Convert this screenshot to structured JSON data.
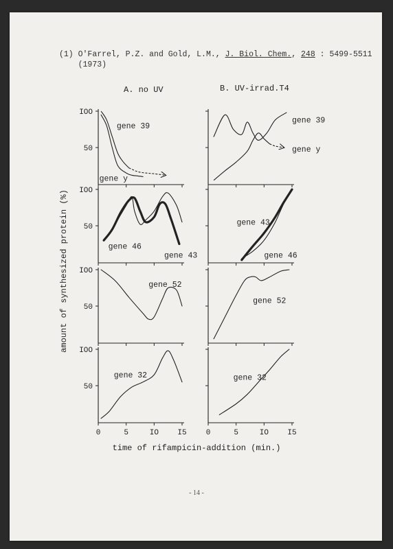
{
  "reference": {
    "number": "(1)",
    "authors": "O'Farrel, P.Z. and Gold, L.M.,",
    "journal": "J. Biol. Chem.",
    "volume": "248",
    "pages": ": 5499-5511",
    "year": "(1973)"
  },
  "page_number": "- 14 -",
  "chart_data": {
    "type": "line",
    "ylabel": "amount of synthesized protein  (%)",
    "xlabel": "time of rifampicin-addition (min.)",
    "x_ticks": [
      "0",
      "5",
      "IO",
      "I5"
    ],
    "y_ticks": [
      "IOO",
      "50"
    ],
    "xlim": [
      0,
      15
    ],
    "ylim": [
      0,
      100
    ],
    "columns": [
      {
        "title": "A.  no UV"
      },
      {
        "title": "B.  UV-irrad.T4"
      }
    ],
    "panels": [
      {
        "col": 0,
        "row": 0,
        "series": [
          {
            "name": "gene 39",
            "x": [
              0.5,
              1.5,
              2.5,
              3.5,
              5,
              6,
              7,
              8
            ],
            "y": [
              95,
              80,
              50,
              25,
              15,
              12,
              11,
              10
            ]
          },
          {
            "name": "gene y",
            "x": [
              0.5,
              1.5,
              2.5,
              3.5,
              4.5,
              5.5,
              7,
              8.5,
              10,
              12
            ],
            "y": [
              100,
              88,
              65,
              42,
              30,
              22,
              17,
              15,
              14,
              12
            ],
            "dashed_after_x": 5.5,
            "arrow": true
          }
        ],
        "labels": [
          {
            "text": "gene 39",
            "x": 3.3,
            "y": 80
          },
          {
            "text": "gene y",
            "x": 0.2,
            "y": 8
          }
        ]
      },
      {
        "col": 1,
        "row": 0,
        "series": [
          {
            "name": "gene 39",
            "x": [
              1,
              3,
              4.5,
              6,
              7,
              8,
              9,
              10.5,
              12,
              14
            ],
            "y": [
              65,
              95,
              75,
              68,
              85,
              70,
              60,
              70,
              88,
              98
            ]
          },
          {
            "name": "gene y",
            "x": [
              1,
              3,
              5,
              7,
              8,
              9,
              10,
              11,
              12,
              13.5
            ],
            "y": [
              5,
              18,
              30,
              45,
              60,
              70,
              62,
              55,
              52,
              50
            ],
            "dashed_after_x": 11,
            "arrow": true
          }
        ],
        "labels": [
          {
            "text": "gene 39",
            "x": 15,
            "y": 88
          },
          {
            "text": "gene y",
            "x": 15,
            "y": 48
          }
        ]
      },
      {
        "col": 0,
        "row": 1,
        "series": [
          {
            "name": "gene 46",
            "x": [
              1,
              2.5,
              4,
              5.5,
              6.5,
              7.5,
              8.5,
              10,
              11,
              12,
              13,
              14.5
            ],
            "y": [
              30,
              45,
              68,
              85,
              88,
              70,
              55,
              62,
              80,
              80,
              60,
              25
            ],
            "bold": true
          },
          {
            "name": "gene 43",
            "x": [
              1,
              2.5,
              4,
              5,
              6,
              6.5,
              7.5,
              8.5,
              10,
              11.5,
              12.5,
              14,
              15
            ],
            "y": [
              30,
              45,
              65,
              78,
              90,
              70,
              52,
              58,
              70,
              90,
              95,
              78,
              55
            ]
          }
        ],
        "labels": [
          {
            "text": "gene 46",
            "x": 1.8,
            "y": 22
          },
          {
            "text": "gene 43",
            "x": 11.8,
            "y": 10
          }
        ]
      },
      {
        "col": 1,
        "row": 1,
        "series": [
          {
            "name": "gene 43",
            "x": [
              6,
              8,
              10,
              12,
              13.5,
              15
            ],
            "y": [
              5,
              15,
              30,
              55,
              80,
              100
            ]
          },
          {
            "name": "gene 46",
            "x": [
              6,
              8,
              10,
              12,
              13.5,
              15
            ],
            "y": [
              3,
              22,
              40,
              62,
              82,
              100
            ],
            "bold": true
          }
        ],
        "labels": [
          {
            "text": "gene 43",
            "x": 5.1,
            "y": 55
          },
          {
            "text": "gene 46",
            "x": 10,
            "y": 10
          }
        ]
      },
      {
        "col": 0,
        "row": 2,
        "series": [
          {
            "name": "gene 52",
            "x": [
              0.5,
              3,
              5.5,
              8,
              9,
              10,
              11.5,
              12.5,
              14,
              15
            ],
            "y": [
              100,
              85,
              62,
              40,
              32,
              35,
              60,
              75,
              72,
              50
            ]
          }
        ],
        "labels": [
          {
            "text": "gene 52",
            "x": 9,
            "y": 80
          }
        ]
      },
      {
        "col": 1,
        "row": 2,
        "series": [
          {
            "name": "gene 52",
            "x": [
              1,
              3,
              5,
              6.5,
              7.5,
              8.5,
              9.5,
              11,
              13,
              14.5
            ],
            "y": [
              5,
              35,
              65,
              85,
              90,
              90,
              85,
              90,
              98,
              100
            ]
          }
        ],
        "labels": [
          {
            "text": "gene 52",
            "x": 8,
            "y": 58
          }
        ]
      },
      {
        "col": 0,
        "row": 3,
        "series": [
          {
            "name": "gene 32",
            "x": [
              0.5,
              2,
              4,
              6,
              8,
              10,
              11.5,
              12.5,
              13.5,
              15
            ],
            "y": [
              5,
              15,
              35,
              48,
              55,
              65,
              88,
              98,
              85,
              55
            ]
          }
        ],
        "labels": [
          {
            "text": "gene 32",
            "x": 2.8,
            "y": 65
          }
        ]
      },
      {
        "col": 1,
        "row": 3,
        "series": [
          {
            "name": "gene 32",
            "x": [
              2,
              5,
              7,
              9,
              11,
              13,
              14.5
            ],
            "y": [
              10,
              25,
              38,
              55,
              72,
              90,
              100
            ]
          }
        ],
        "labels": [
          {
            "text": "gene 32",
            "x": 4.5,
            "y": 62
          }
        ]
      }
    ]
  }
}
